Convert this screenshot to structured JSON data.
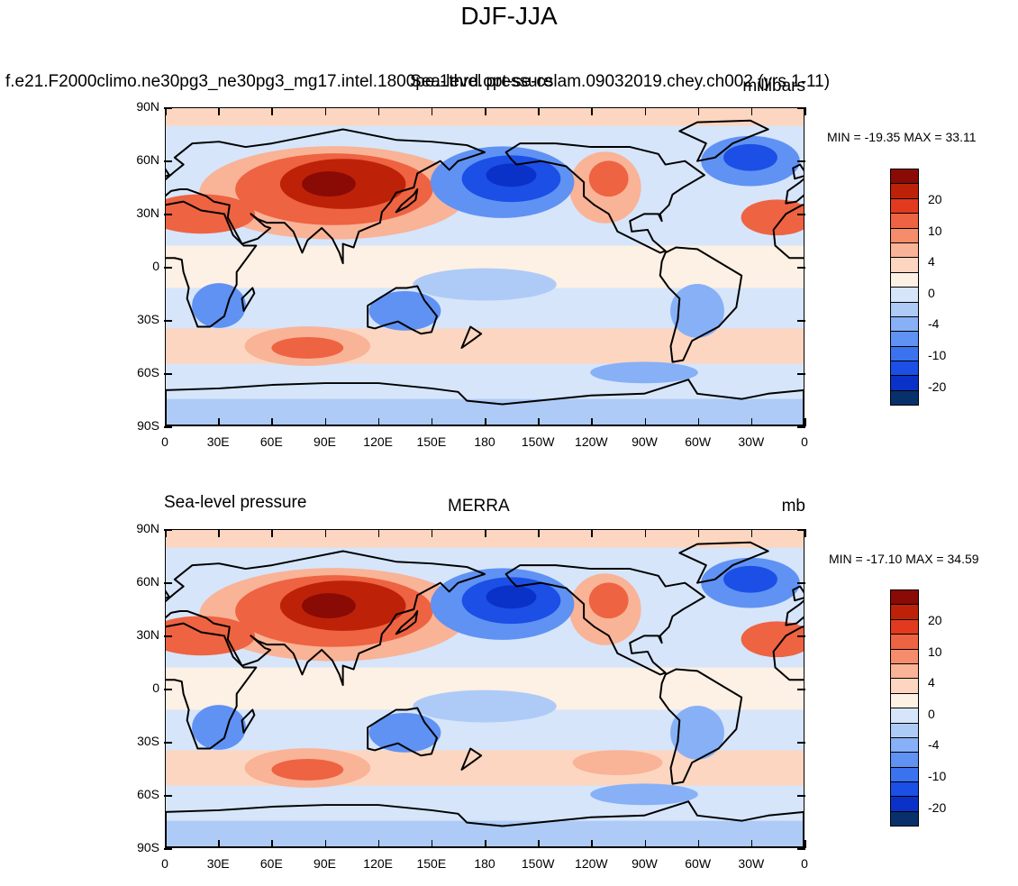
{
  "title": "DJF-JJA",
  "colors": {
    "levels": [
      "#08306b",
      "#0a32c8",
      "#1b4fe6",
      "#3a72f0",
      "#5f92f3",
      "#87b0f6",
      "#aecbf7",
      "#d6e5fa",
      "#fdf0e4",
      "#fcd6c0",
      "#f9b397",
      "#f58d6c",
      "#ee6342",
      "#e13a1f",
      "#bd2208",
      "#8a0a05"
    ]
  },
  "panels": [
    {
      "id": "model",
      "left_title": "f.e21.F2000climo.ne30pg3_ne30pg3_mg17.intel.1800pe.1thrd.opt-se-cslam.09032019.chey.ch002 (yrs 1-11)",
      "center_title": "Sea-level pressure",
      "right_title": "millibars",
      "min_max": "MIN = -19.35 MAX =  33.11",
      "chart_data": {
        "type": "heatmap",
        "variable": "Sea-level pressure",
        "units": "millibars",
        "min": -19.35,
        "max": 33.11,
        "lat_labels": [
          "90N",
          "60N",
          "30N",
          "0",
          "30S",
          "60S",
          "90S"
        ],
        "lon_labels": [
          "0",
          "30E",
          "60E",
          "90E",
          "120E",
          "150E",
          "180",
          "150W",
          "120W",
          "90W",
          "60W",
          "30W",
          "0"
        ],
        "colorbar_labels": [
          "20",
          "10",
          "4",
          "0",
          "-4",
          "-10",
          "-20"
        ]
      }
    },
    {
      "id": "obs",
      "left_title": "Sea-level pressure",
      "center_title": "MERRA",
      "right_title": "mb",
      "min_max": "MIN = -17.10 MAX =  34.59",
      "chart_data": {
        "type": "heatmap",
        "variable": "Sea-level pressure",
        "units": "mb",
        "min": -17.1,
        "max": 34.59,
        "lat_labels": [
          "90N",
          "60N",
          "30N",
          "0",
          "30S",
          "60S",
          "90S"
        ],
        "lon_labels": [
          "0",
          "30E",
          "60E",
          "90E",
          "120E",
          "150E",
          "180",
          "150W",
          "120W",
          "90W",
          "60W",
          "30W",
          "0"
        ],
        "colorbar_labels": [
          "20",
          "10",
          "4",
          "0",
          "-4",
          "-10",
          "-20"
        ]
      }
    }
  ]
}
